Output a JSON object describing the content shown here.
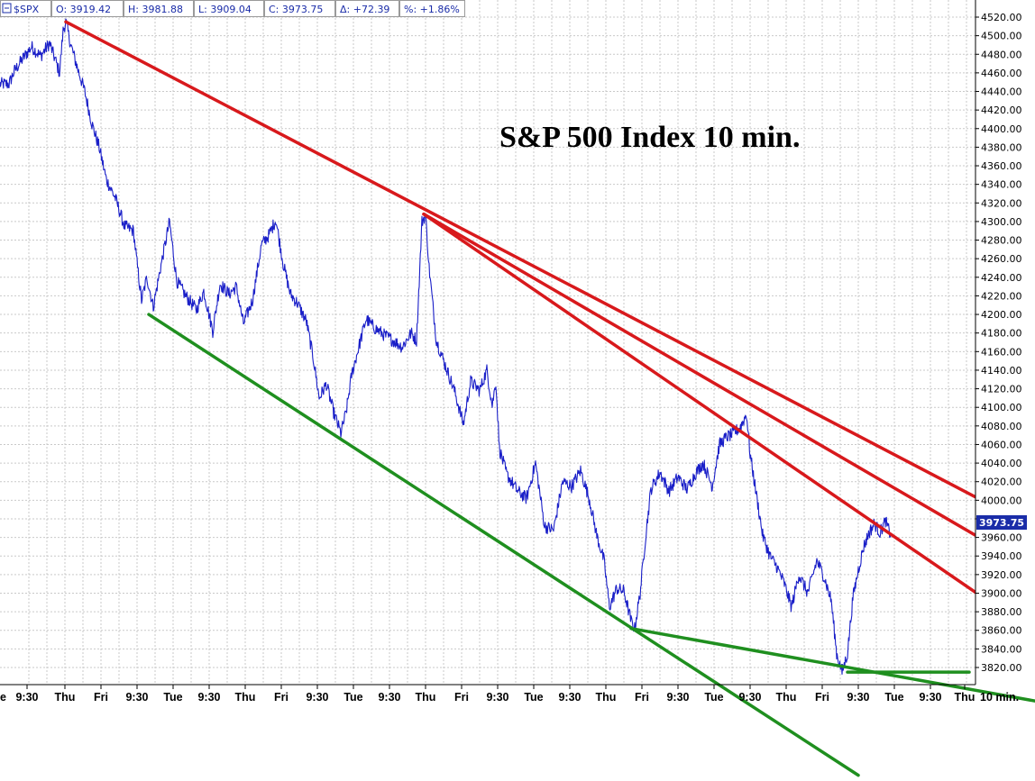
{
  "header": {
    "symbol": "$SPX",
    "open": "O: 3919.42",
    "high": "H: 3981.88",
    "low": "L: 3909.04",
    "close": "C: 3973.75",
    "change": "Δ: +72.39",
    "percent": "%: +1.86%"
  },
  "chart_data": {
    "type": "line",
    "title": "S&P 500 Index 10 min.",
    "ylim": [
      3810,
      4525
    ],
    "grid": true,
    "y_ticks": [
      "4520.00",
      "4500.00",
      "4480.00",
      "4460.00",
      "4440.00",
      "4420.00",
      "4400.00",
      "4380.00",
      "4360.00",
      "4340.00",
      "4320.00",
      "4300.00",
      "4280.00",
      "4260.00",
      "4240.00",
      "4220.00",
      "4200.00",
      "4180.00",
      "4160.00",
      "4140.00",
      "4120.00",
      "4100.00",
      "4080.00",
      "4060.00",
      "4040.00",
      "4020.00",
      "4000.00",
      "3980.00",
      "3960.00",
      "3940.00",
      "3920.00",
      "3900.00",
      "3880.00",
      "3860.00",
      "3840.00",
      "3820.00"
    ],
    "x_ticks": [
      "e",
      "9:30",
      "Thu",
      "Fri",
      "9:30",
      "Tue",
      "9:30",
      "Thu",
      "Fri",
      "9:30",
      "Tue",
      "9:30",
      "Thu",
      "Fri",
      "9:30",
      "Tue",
      "9:30",
      "Thu",
      "Fri",
      "9:30",
      "Tue",
      "9:30",
      "Thu",
      "Fri",
      "9:30",
      "Tue",
      "9:30",
      "Thu"
    ],
    "x_unit_label": "10 min.",
    "last_value": "3973.75",
    "price_keypoints": [
      {
        "t": 0,
        "y": 4448
      },
      {
        "t": 10,
        "y": 4448
      },
      {
        "t": 16,
        "y": 4462
      },
      {
        "t": 25,
        "y": 4475
      },
      {
        "t": 35,
        "y": 4488
      },
      {
        "t": 45,
        "y": 4478
      },
      {
        "t": 55,
        "y": 4492
      },
      {
        "t": 62,
        "y": 4472
      },
      {
        "t": 66,
        "y": 4460
      },
      {
        "t": 70,
        "y": 4505
      },
      {
        "t": 73,
        "y": 4515
      },
      {
        "t": 78,
        "y": 4492
      },
      {
        "t": 86,
        "y": 4465
      },
      {
        "t": 94,
        "y": 4440
      },
      {
        "t": 102,
        "y": 4405
      },
      {
        "t": 110,
        "y": 4380
      },
      {
        "t": 118,
        "y": 4345
      },
      {
        "t": 128,
        "y": 4325
      },
      {
        "t": 138,
        "y": 4295
      },
      {
        "t": 148,
        "y": 4290
      },
      {
        "t": 152,
        "y": 4255
      },
      {
        "t": 157,
        "y": 4215
      },
      {
        "t": 163,
        "y": 4240
      },
      {
        "t": 170,
        "y": 4208
      },
      {
        "t": 178,
        "y": 4250
      },
      {
        "t": 188,
        "y": 4300
      },
      {
        "t": 196,
        "y": 4236
      },
      {
        "t": 206,
        "y": 4220
      },
      {
        "t": 218,
        "y": 4205
      },
      {
        "t": 226,
        "y": 4225
      },
      {
        "t": 236,
        "y": 4182
      },
      {
        "t": 244,
        "y": 4233
      },
      {
        "t": 254,
        "y": 4222
      },
      {
        "t": 262,
        "y": 4230
      },
      {
        "t": 270,
        "y": 4190
      },
      {
        "t": 280,
        "y": 4215
      },
      {
        "t": 290,
        "y": 4275
      },
      {
        "t": 298,
        "y": 4285
      },
      {
        "t": 306,
        "y": 4302
      },
      {
        "t": 314,
        "y": 4255
      },
      {
        "t": 322,
        "y": 4222
      },
      {
        "t": 330,
        "y": 4212
      },
      {
        "t": 340,
        "y": 4192
      },
      {
        "t": 348,
        "y": 4150
      },
      {
        "t": 354,
        "y": 4110
      },
      {
        "t": 362,
        "y": 4125
      },
      {
        "t": 370,
        "y": 4095
      },
      {
        "t": 378,
        "y": 4072
      },
      {
        "t": 384,
        "y": 4095
      },
      {
        "t": 390,
        "y": 4135
      },
      {
        "t": 398,
        "y": 4165
      },
      {
        "t": 406,
        "y": 4195
      },
      {
        "t": 416,
        "y": 4185
      },
      {
        "t": 426,
        "y": 4178
      },
      {
        "t": 436,
        "y": 4172
      },
      {
        "t": 446,
        "y": 4165
      },
      {
        "t": 456,
        "y": 4180
      },
      {
        "t": 462,
        "y": 4172
      },
      {
        "t": 468,
        "y": 4300
      },
      {
        "t": 472,
        "y": 4307
      },
      {
        "t": 476,
        "y": 4250
      },
      {
        "t": 484,
        "y": 4172
      },
      {
        "t": 494,
        "y": 4145
      },
      {
        "t": 504,
        "y": 4118
      },
      {
        "t": 514,
        "y": 4082
      },
      {
        "t": 522,
        "y": 4128
      },
      {
        "t": 532,
        "y": 4118
      },
      {
        "t": 540,
        "y": 4140
      },
      {
        "t": 546,
        "y": 4102
      },
      {
        "t": 550,
        "y": 4128
      },
      {
        "t": 554,
        "y": 4055
      },
      {
        "t": 562,
        "y": 4028
      },
      {
        "t": 574,
        "y": 4010
      },
      {
        "t": 584,
        "y": 4002
      },
      {
        "t": 594,
        "y": 4040
      },
      {
        "t": 604,
        "y": 3972
      },
      {
        "t": 614,
        "y": 3968
      },
      {
        "t": 624,
        "y": 4020
      },
      {
        "t": 634,
        "y": 4015
      },
      {
        "t": 644,
        "y": 4032
      },
      {
        "t": 654,
        "y": 4000
      },
      {
        "t": 662,
        "y": 3962
      },
      {
        "t": 670,
        "y": 3935
      },
      {
        "t": 676,
        "y": 3885
      },
      {
        "t": 684,
        "y": 3905
      },
      {
        "t": 692,
        "y": 3902
      },
      {
        "t": 700,
        "y": 3870
      },
      {
        "t": 704,
        "y": 3862
      },
      {
        "t": 710,
        "y": 3900
      },
      {
        "t": 716,
        "y": 3960
      },
      {
        "t": 722,
        "y": 4012
      },
      {
        "t": 732,
        "y": 4030
      },
      {
        "t": 742,
        "y": 4010
      },
      {
        "t": 752,
        "y": 4025
      },
      {
        "t": 762,
        "y": 4012
      },
      {
        "t": 772,
        "y": 4030
      },
      {
        "t": 780,
        "y": 4040
      },
      {
        "t": 790,
        "y": 4015
      },
      {
        "t": 798,
        "y": 4060
      },
      {
        "t": 806,
        "y": 4068
      },
      {
        "t": 814,
        "y": 4072
      },
      {
        "t": 822,
        "y": 4080
      },
      {
        "t": 828,
        "y": 4093
      },
      {
        "t": 832,
        "y": 4050
      },
      {
        "t": 838,
        "y": 4012
      },
      {
        "t": 846,
        "y": 3962
      },
      {
        "t": 854,
        "y": 3940
      },
      {
        "t": 862,
        "y": 3928
      },
      {
        "t": 870,
        "y": 3910
      },
      {
        "t": 878,
        "y": 3885
      },
      {
        "t": 886,
        "y": 3920
      },
      {
        "t": 896,
        "y": 3900
      },
      {
        "t": 906,
        "y": 3935
      },
      {
        "t": 914,
        "y": 3918
      },
      {
        "t": 922,
        "y": 3892
      },
      {
        "t": 928,
        "y": 3835
      },
      {
        "t": 934,
        "y": 3815
      },
      {
        "t": 940,
        "y": 3835
      },
      {
        "t": 946,
        "y": 3895
      },
      {
        "t": 952,
        "y": 3925
      },
      {
        "t": 958,
        "y": 3950
      },
      {
        "t": 964,
        "y": 3965
      },
      {
        "t": 970,
        "y": 3975
      },
      {
        "t": 976,
        "y": 3965
      },
      {
        "t": 982,
        "y": 3978
      },
      {
        "t": 988,
        "y": 3962
      }
    ],
    "trendlines": {
      "red": [
        {
          "from": {
            "t": 73,
            "y": 4515
          },
          "to": {
            "t": 1148,
            "y": 3970
          }
        },
        {
          "from": {
            "t": 470,
            "y": 4308
          },
          "to": {
            "t": 1148,
            "y": 3925
          }
        },
        {
          "from": {
            "t": 470,
            "y": 4308
          },
          "to": {
            "t": 1148,
            "y": 3857
          }
        }
      ],
      "green": [
        {
          "from": {
            "t": 165,
            "y": 4200
          },
          "to": {
            "t": 952,
            "y": 3704
          }
        },
        {
          "from": {
            "t": 700,
            "y": 3862
          },
          "to": {
            "t": 1148,
            "y": 3784
          }
        },
        {
          "from": {
            "t": 940,
            "y": 3815
          },
          "to": {
            "t": 1075,
            "y": 3815
          }
        }
      ]
    }
  }
}
